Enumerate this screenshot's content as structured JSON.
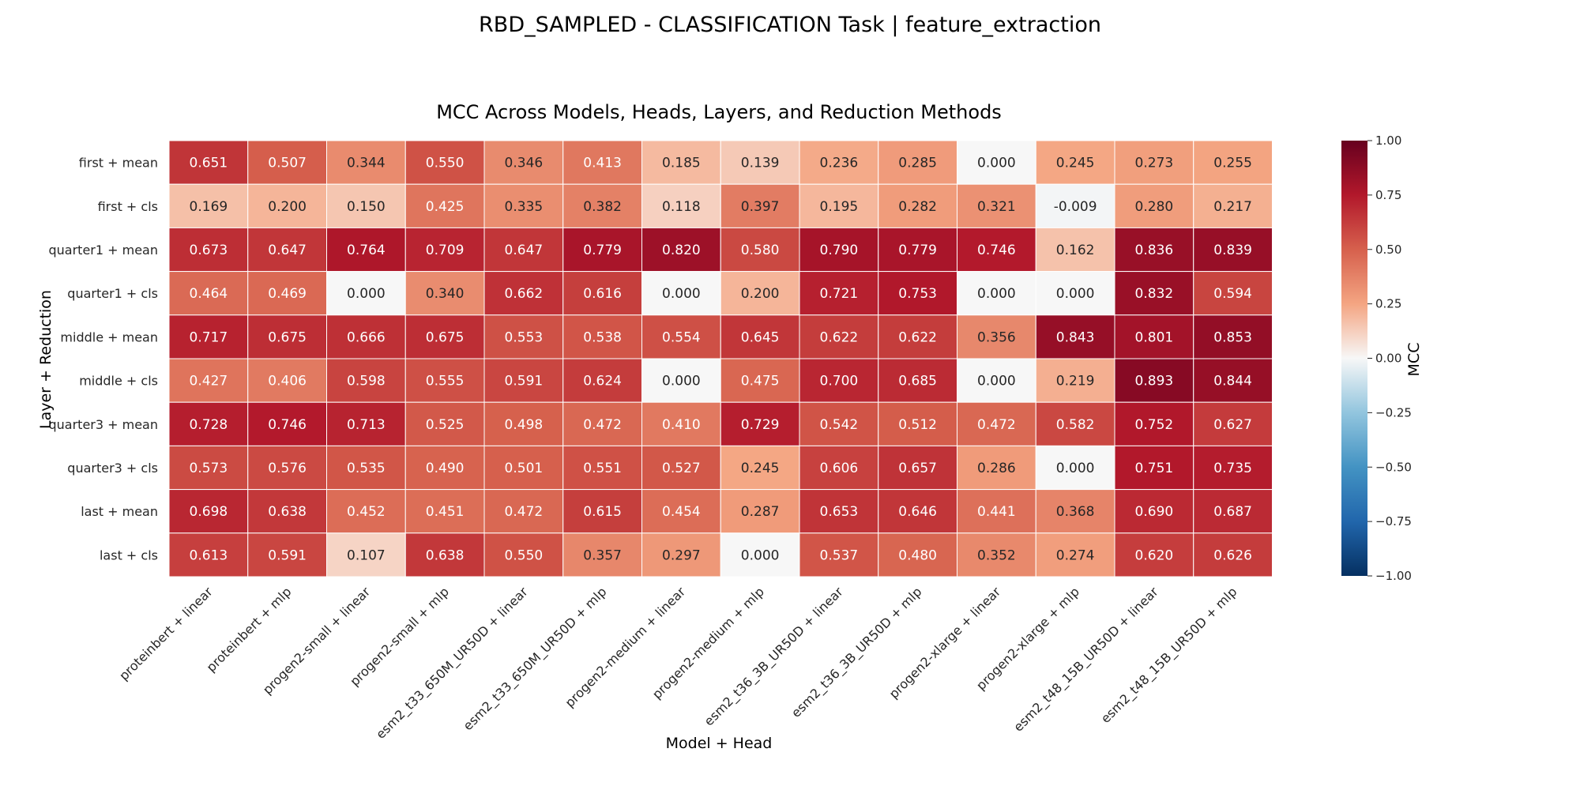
{
  "suptitle": "RBD_SAMPLED - CLASSIFICATION Task | feature_extraction",
  "chart_data": {
    "type": "heatmap",
    "title": "MCC Across Models, Heads, Layers, and Reduction Methods",
    "xlabel": "Model + Head",
    "ylabel": "Layer + Reduction",
    "colorbar_label": "MCC",
    "colormap": "RdBu_r",
    "vmin": -1.0,
    "vmax": 1.0,
    "colorbar_ticks": [
      "1.00",
      "0.75",
      "0.50",
      "0.25",
      "0.00",
      "−0.25",
      "−0.50",
      "−0.75",
      "−1.00"
    ],
    "colorbar_tick_values": [
      1.0,
      0.75,
      0.5,
      0.25,
      0.0,
      -0.25,
      -0.5,
      -0.75,
      -1.0
    ],
    "columns": [
      "proteinbert + linear",
      "proteinbert + mlp",
      "progen2-small + linear",
      "progen2-small + mlp",
      "esm2_t33_650M_UR50D + linear",
      "esm2_t33_650M_UR50D + mlp",
      "progen2-medium + linear",
      "progen2-medium + mlp",
      "esm2_t36_3B_UR50D + linear",
      "esm2_t36_3B_UR50D + mlp",
      "progen2-xlarge + linear",
      "progen2-xlarge + mlp",
      "esm2_t48_15B_UR50D + linear",
      "esm2_t48_15B_UR50D + mlp"
    ],
    "rows": [
      "first + mean",
      "first + cls",
      "quarter1 + mean",
      "quarter1 + cls",
      "middle + mean",
      "middle + cls",
      "quarter3 + mean",
      "quarter3 + cls",
      "last + mean",
      "last + cls"
    ],
    "values": [
      [
        "0.651",
        "0.507",
        "0.344",
        "0.550",
        "0.346",
        "0.413",
        "0.185",
        "0.139",
        "0.236",
        "0.285",
        "0.000",
        "0.245",
        "0.273",
        "0.255"
      ],
      [
        "0.169",
        "0.200",
        "0.150",
        "0.425",
        "0.335",
        "0.382",
        "0.118",
        "0.397",
        "0.195",
        "0.282",
        "0.321",
        "-0.009",
        "0.280",
        "0.217"
      ],
      [
        "0.673",
        "0.647",
        "0.764",
        "0.709",
        "0.647",
        "0.779",
        "0.820",
        "0.580",
        "0.790",
        "0.779",
        "0.746",
        "0.162",
        "0.836",
        "0.839"
      ],
      [
        "0.464",
        "0.469",
        "0.000",
        "0.340",
        "0.662",
        "0.616",
        "0.000",
        "0.200",
        "0.721",
        "0.753",
        "0.000",
        "0.000",
        "0.832",
        "0.594"
      ],
      [
        "0.717",
        "0.675",
        "0.666",
        "0.675",
        "0.553",
        "0.538",
        "0.554",
        "0.645",
        "0.622",
        "0.622",
        "0.356",
        "0.843",
        "0.801",
        "0.853"
      ],
      [
        "0.427",
        "0.406",
        "0.598",
        "0.555",
        "0.591",
        "0.624",
        "0.000",
        "0.475",
        "0.700",
        "0.685",
        "0.000",
        "0.219",
        "0.893",
        "0.844"
      ],
      [
        "0.728",
        "0.746",
        "0.713",
        "0.525",
        "0.498",
        "0.472",
        "0.410",
        "0.729",
        "0.542",
        "0.512",
        "0.472",
        "0.582",
        "0.752",
        "0.627"
      ],
      [
        "0.573",
        "0.576",
        "0.535",
        "0.490",
        "0.501",
        "0.551",
        "0.527",
        "0.245",
        "0.606",
        "0.657",
        "0.286",
        "0.000",
        "0.751",
        "0.735"
      ],
      [
        "0.698",
        "0.638",
        "0.452",
        "0.451",
        "0.472",
        "0.615",
        "0.454",
        "0.287",
        "0.653",
        "0.646",
        "0.441",
        "0.368",
        "0.690",
        "0.687"
      ],
      [
        "0.613",
        "0.591",
        "0.107",
        "0.638",
        "0.550",
        "0.357",
        "0.297",
        "0.000",
        "0.537",
        "0.480",
        "0.352",
        "0.274",
        "0.620",
        "0.626"
      ]
    ]
  }
}
